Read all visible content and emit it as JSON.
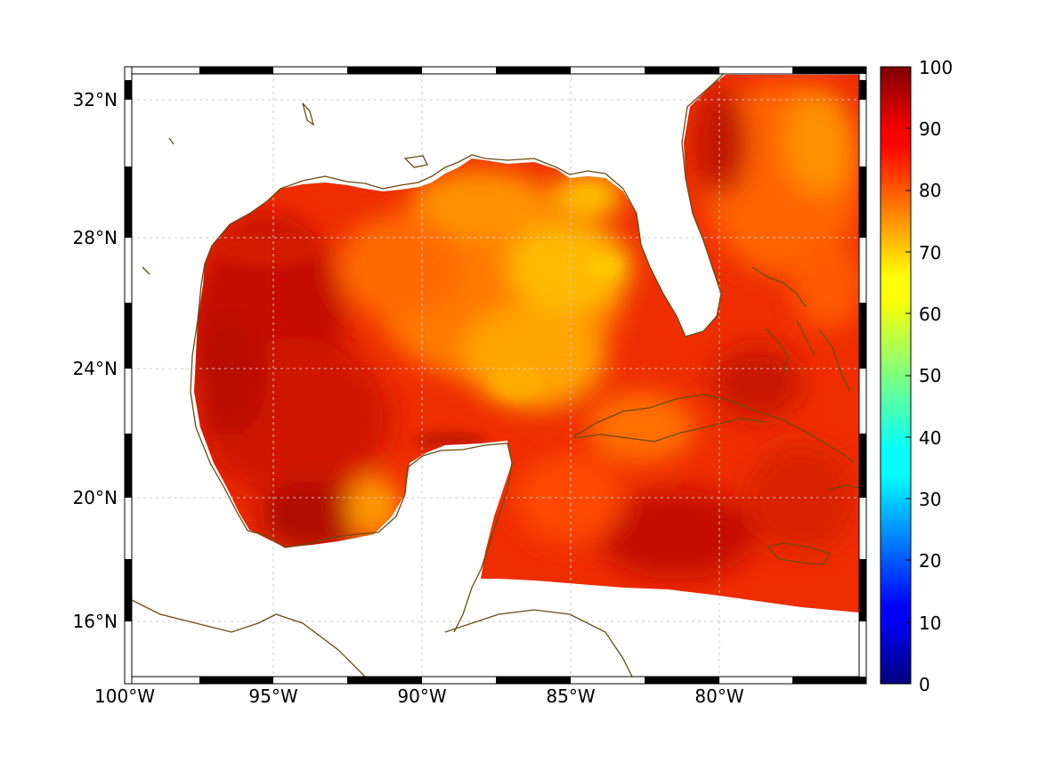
{
  "map": {
    "projection": "mercator",
    "lon_range": [
      -100,
      -75
    ],
    "lat_range": [
      14.2,
      33
    ],
    "coastline_color": "#6b4a12",
    "grid": true,
    "lat_ticks": [
      {
        "value": 32,
        "label": "32°N"
      },
      {
        "value": 28,
        "label": "28°N"
      },
      {
        "value": 24,
        "label": "24°N"
      },
      {
        "value": 20,
        "label": "20°N"
      },
      {
        "value": 16,
        "label": "16°N"
      }
    ],
    "lon_ticks": [
      {
        "value": -100,
        "label": "100°W"
      },
      {
        "value": -95,
        "label": "95°W"
      },
      {
        "value": -90,
        "label": "90°W"
      },
      {
        "value": -85,
        "label": "85°W"
      },
      {
        "value": -80,
        "label": "80°W"
      }
    ]
  },
  "colorbar": {
    "colormap": "jet",
    "min": 0,
    "max": 100,
    "ticks": [
      "100",
      "90",
      "80",
      "70",
      "60",
      "50",
      "40",
      "30",
      "20",
      "10",
      "0"
    ]
  },
  "field": {
    "typical_range": [
      70,
      97
    ],
    "high_value_areas": [
      "western Gulf of Mexico",
      "Bay of Campeche",
      "Caribbean south of Cuba"
    ],
    "low_value_areas": [
      "central/eastern Gulf of Mexico",
      "off Florida west coast"
    ]
  }
}
